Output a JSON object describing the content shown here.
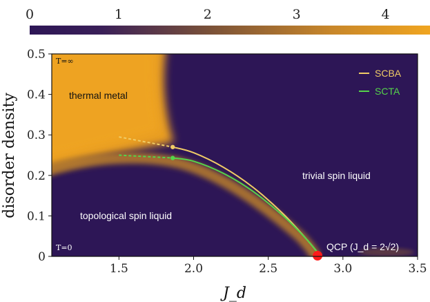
{
  "chart_data": {
    "type": "heatmap",
    "xlabel": "J_d",
    "ylabel": "disorder density",
    "xlim": [
      1.05,
      3.5
    ],
    "ylim": [
      0,
      0.5
    ],
    "xticks": [
      "1.5",
      "2.0",
      "2.5",
      "3.0",
      "3.5"
    ],
    "yticks": [
      "0",
      "0.1",
      "0.2",
      "0.3",
      "0.4",
      "0.5"
    ],
    "colorbar": {
      "ticks": [
        "0",
        "1",
        "2",
        "3",
        "4"
      ],
      "range": [
        0,
        4.5
      ],
      "colors": {
        "low": "#2d1656",
        "high": "#f0a520"
      }
    },
    "labels": {
      "t_top": "T=∞",
      "t_bottom": "T=0",
      "thermal_metal": "thermal metal",
      "topological": "topological spin liquid",
      "trivial": "trivial spin liquid",
      "qcp": "QCP (J_d = 2√2)"
    },
    "series": [
      {
        "name": "SCBA",
        "color": "#f0cc66",
        "x": [
          1.86,
          2.0,
          2.2,
          2.4,
          2.6,
          2.75,
          2.83
        ],
        "y": [
          0.27,
          0.256,
          0.22,
          0.17,
          0.105,
          0.045,
          0.01
        ],
        "dashed_x": [
          1.5,
          1.86
        ],
        "dashed_y": [
          0.295,
          0.27
        ]
      },
      {
        "name": "SCTA",
        "color": "#55d44a",
        "x": [
          1.86,
          2.0,
          2.2,
          2.4,
          2.6,
          2.75,
          2.83
        ],
        "y": [
          0.243,
          0.235,
          0.205,
          0.16,
          0.1,
          0.045,
          0.01
        ],
        "dashed_x": [
          1.5,
          1.86
        ],
        "dashed_y": [
          0.25,
          0.243
        ]
      }
    ],
    "qcp_point": {
      "x": 2.83,
      "y": 0.0,
      "color": "#ff1a1a"
    }
  }
}
